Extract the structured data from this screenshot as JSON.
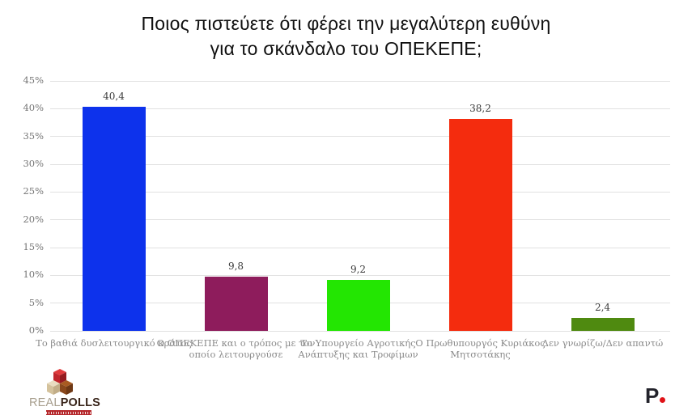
{
  "header": {
    "title_line1": "Ποιος πιστεύετε ότι φέρει την μεγαλύτερη ευθύνη",
    "title_line2": "για το σκάνδαλο του ΟΠΕΚΕΠΕ;"
  },
  "chart_data": {
    "type": "bar",
    "title": "Ποιος πιστεύετε ότι φέρει την μεγαλύτερη ευθύνη για το σκάνδαλο του ΟΠΕΚΕΠΕ;",
    "categories": [
      "Το βαθιά δυσλειτουργικό κράτος",
      "Ο ΟΠΕΚΕΠΕ και ο τρόπος με τον οποίο λειτουργούσε",
      "Το Υπουργείο Αγροτικής Ανάπτυξης και Τροφίμων",
      "Ο Πρωθυπουργός Κυριάκος Μητσοτάκης",
      "Δεν γνωρίζω/Δεν απαντώ"
    ],
    "values": [
      40.4,
      9.8,
      9.2,
      38.2,
      2.4
    ],
    "value_labels": [
      "40,4",
      "9,8",
      "9,2",
      "38,2",
      "2,4"
    ],
    "bar_colors": [
      "#0d32ec",
      "#8e1c5c",
      "#23e602",
      "#f42c0e",
      "#4f8a10"
    ],
    "xlabel": "",
    "ylabel": "",
    "ylim": [
      0,
      45
    ],
    "ytick_step": 5,
    "ytick_labels": [
      "0%",
      "5%",
      "10%",
      "15%",
      "20%",
      "25%",
      "30%",
      "35%",
      "40%",
      "45%"
    ],
    "grid": true,
    "legend": false
  },
  "branding": {
    "realpolls_light": "REAL",
    "realpolls_bold": "POLLS",
    "publisher_letter": "P",
    "logo_red": "#c1272d",
    "publisher_dot_color": "#e01217"
  }
}
